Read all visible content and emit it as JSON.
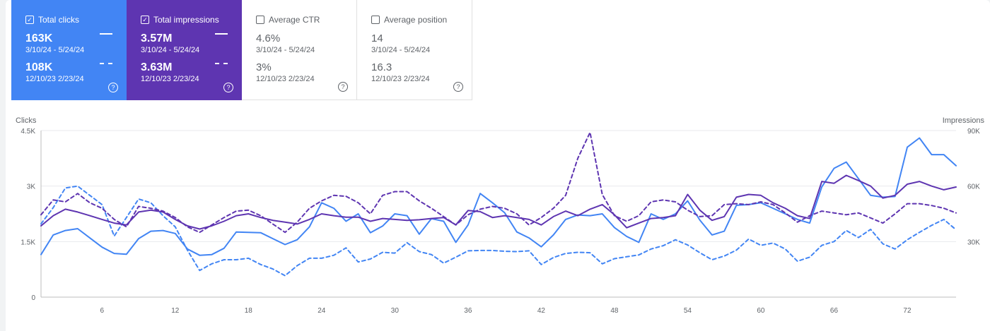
{
  "cards": [
    {
      "label": "Total clicks",
      "checked": true,
      "value": "163K",
      "range": "3/10/24 - 5/24/24",
      "value2": "108K",
      "range2": "12/10/23  2/23/24",
      "color": "#4285f4"
    },
    {
      "label": "Total impressions",
      "checked": true,
      "value": "3.57M",
      "range": "3/10/24 - 5/24/24",
      "value2": "3.63M",
      "range2": "12/10/23  2/23/24",
      "color": "#5e35b1"
    },
    {
      "label": "Average CTR",
      "checked": false,
      "value": "4.6%",
      "range": "3/10/24 - 5/24/24",
      "value2": "3%",
      "range2": "12/10/23  2/23/24"
    },
    {
      "label": "Average position",
      "checked": false,
      "value": "14",
      "range": "3/10/24 - 5/24/24",
      "value2": "16.3",
      "range2": "12/10/23  2/23/24"
    }
  ],
  "icons": {
    "checkbox_checked": "✓",
    "help": "?"
  },
  "chart_data": {
    "type": "line",
    "ylabel": "Clicks",
    "y2label": "Impressions",
    "ylim": [
      0,
      4500
    ],
    "y2lim": [
      0,
      90000
    ],
    "yticks": [
      "0",
      "1.5K",
      "3K",
      "4.5K"
    ],
    "y2ticks": [
      "30K",
      "60K",
      "90K"
    ],
    "xlim": [
      1,
      76
    ],
    "xticks": [
      6,
      12,
      18,
      24,
      30,
      36,
      42,
      48,
      54,
      60,
      66,
      72
    ],
    "grid": true,
    "series": [
      {
        "axis": "left",
        "style": "solid",
        "color": "#4285f4",
        "x": [
          1,
          2,
          3,
          4,
          5,
          6,
          7,
          8,
          9,
          10,
          11,
          12,
          13,
          14,
          15,
          16,
          17,
          18,
          19,
          20,
          21,
          22,
          23,
          24,
          25,
          26,
          27,
          28,
          29,
          30,
          31,
          32,
          33,
          34,
          35,
          36,
          37,
          38,
          39,
          40,
          41,
          42,
          43,
          44,
          45,
          46,
          47,
          48,
          49,
          50,
          51,
          52,
          53,
          54,
          55,
          56,
          57,
          58,
          59,
          60,
          61,
          62,
          63,
          64,
          65,
          66,
          67,
          68,
          69,
          70,
          71,
          72,
          73,
          74,
          75,
          76
        ],
        "values": [
          1150,
          1680,
          1800,
          1850,
          1600,
          1350,
          1180,
          1160,
          1580,
          1780,
          1800,
          1720,
          1300,
          1130,
          1150,
          1320,
          1760,
          1750,
          1740,
          1580,
          1420,
          1550,
          1900,
          2550,
          2400,
          2050,
          2250,
          1740,
          1920,
          2250,
          2200,
          1700,
          2120,
          2050,
          1480,
          1950,
          2800,
          2550,
          2280,
          1760,
          1600,
          1360,
          1680,
          2100,
          2220,
          2200,
          2250,
          1880,
          1640,
          1480,
          2250,
          2100,
          2250,
          2600,
          2080,
          1680,
          1780,
          2480,
          2500,
          2550,
          2400,
          2250,
          2100,
          2000,
          2980,
          3480,
          3650,
          3200,
          2750,
          2700,
          2720,
          4050,
          4300,
          3850,
          3850,
          3550
        ]
      },
      {
        "axis": "left",
        "style": "dash",
        "color": "#4285f4",
        "x": [
          1,
          2,
          3,
          4,
          5,
          6,
          7,
          8,
          9,
          10,
          11,
          12,
          13,
          14,
          15,
          16,
          17,
          18,
          19,
          20,
          21,
          22,
          23,
          24,
          25,
          26,
          27,
          28,
          29,
          30,
          31,
          32,
          33,
          34,
          35,
          36,
          37,
          38,
          39,
          40,
          41,
          42,
          43,
          44,
          45,
          46,
          47,
          48,
          49,
          50,
          51,
          52,
          53,
          54,
          55,
          56,
          57,
          58,
          59,
          60,
          61,
          62,
          63,
          64,
          65,
          66,
          67,
          68,
          69,
          70,
          71,
          72,
          73,
          74,
          75,
          76
        ],
        "values": [
          1980,
          2420,
          2950,
          3000,
          2750,
          2500,
          1650,
          2150,
          2650,
          2550,
          2200,
          1900,
          1270,
          720,
          900,
          1010,
          1010,
          1050,
          880,
          760,
          580,
          850,
          1050,
          1050,
          1130,
          1330,
          950,
          1030,
          1210,
          1190,
          1470,
          1230,
          1150,
          920,
          1080,
          1250,
          1260,
          1260,
          1240,
          1230,
          1250,
          880,
          1070,
          1180,
          1210,
          1200,
          900,
          1040,
          1090,
          1140,
          1300,
          1390,
          1550,
          1410,
          1200,
          1010,
          1110,
          1270,
          1570,
          1400,
          1460,
          1300,
          970,
          1080,
          1400,
          1500,
          1800,
          1610,
          1830,
          1440,
          1300,
          1550,
          1750,
          1940,
          2100,
          1820
        ]
      },
      {
        "axis": "right",
        "style": "solid",
        "color": "#5e35b1",
        "x": [
          1,
          2,
          3,
          4,
          5,
          6,
          7,
          8,
          9,
          10,
          11,
          12,
          13,
          14,
          15,
          16,
          17,
          18,
          19,
          20,
          21,
          22,
          23,
          24,
          25,
          26,
          27,
          28,
          29,
          30,
          31,
          32,
          33,
          34,
          35,
          36,
          37,
          38,
          39,
          40,
          41,
          42,
          43,
          44,
          45,
          46,
          47,
          48,
          49,
          50,
          51,
          52,
          53,
          54,
          55,
          56,
          57,
          58,
          59,
          60,
          61,
          62,
          63,
          64,
          65,
          66,
          67,
          68,
          69,
          70,
          71,
          72,
          73,
          74,
          75,
          76
        ],
        "values": [
          38500,
          44000,
          47500,
          46000,
          44000,
          42000,
          40000,
          39000,
          46000,
          47000,
          46000,
          42000,
          38500,
          36800,
          38500,
          41000,
          44000,
          45000,
          43000,
          41500,
          40500,
          39500,
          42000,
          45000,
          44000,
          43200,
          43200,
          41000,
          42500,
          42000,
          41500,
          41800,
          42500,
          43000,
          39000,
          46800,
          46200,
          43000,
          44000,
          43000,
          42000,
          39000,
          43500,
          46500,
          44000,
          47500,
          50000,
          44500,
          37500,
          40000,
          42500,
          43000,
          44000,
          55500,
          47000,
          41500,
          43500,
          54000,
          55500,
          55000,
          51000,
          48000,
          44000,
          42500,
          62500,
          61500,
          65800,
          63000,
          60000,
          53500,
          55000,
          61000,
          62500,
          60000,
          58000,
          59500
        ]
      },
      {
        "axis": "right",
        "style": "dash",
        "color": "#5e35b1",
        "x": [
          1,
          2,
          3,
          4,
          5,
          6,
          7,
          8,
          9,
          10,
          11,
          12,
          13,
          14,
          15,
          16,
          17,
          18,
          19,
          20,
          21,
          22,
          23,
          24,
          25,
          26,
          27,
          28,
          29,
          30,
          31,
          32,
          33,
          34,
          35,
          36,
          37,
          38,
          39,
          40,
          41,
          42,
          43,
          44,
          45,
          46,
          47,
          48,
          49,
          50,
          51,
          52,
          53,
          54,
          55,
          56,
          57,
          58,
          59,
          60,
          61,
          62,
          63,
          64,
          65,
          66,
          67,
          68,
          69,
          70,
          71,
          72,
          73,
          74,
          75,
          76
        ],
        "values": [
          44500,
          52500,
          51500,
          56000,
          51000,
          48000,
          42000,
          38000,
          49000,
          48000,
          46500,
          43000,
          38000,
          35000,
          39000,
          43000,
          46500,
          47000,
          44000,
          39500,
          35000,
          40500,
          48000,
          52000,
          55000,
          54500,
          51000,
          45000,
          55000,
          57000,
          57000,
          52000,
          48000,
          43500,
          39000,
          44500,
          47500,
          49000,
          48000,
          45000,
          39000,
          43000,
          48000,
          55000,
          75000,
          89000,
          55500,
          44000,
          41000,
          44000,
          51500,
          52500,
          51500,
          47000,
          43500,
          44000,
          50000,
          50500,
          50000,
          51500,
          50000,
          45500,
          40500,
          44000,
          46500,
          45500,
          44500,
          45500,
          42800,
          40000,
          45000,
          50500,
          50500,
          49500,
          48000,
          45500
        ]
      }
    ]
  }
}
